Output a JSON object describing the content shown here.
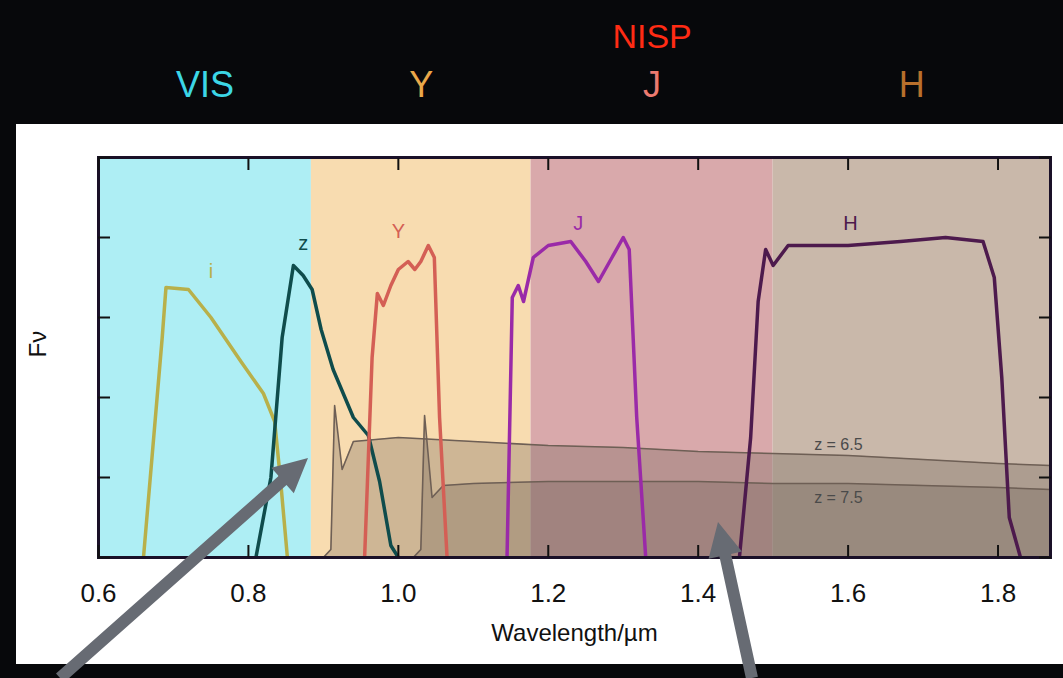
{
  "chart_data": {
    "type": "line",
    "x_label": "Wavelength/µm",
    "y_label": "Fν",
    "xlim": [
      0.6,
      1.87
    ],
    "ylim": [
      0,
      1
    ],
    "xticks": [
      0.6,
      0.8,
      {
        "value": 1,
        "label": "1.0"
      },
      1.2,
      1.4,
      1.6,
      1.8
    ],
    "yticks": [
      0,
      0.2,
      0.4,
      0.6,
      0.8,
      1
    ],
    "tick_labels": "x",
    "grid": false,
    "bands": [
      {
        "name": "VIS",
        "x1": 0.57,
        "x2": 0.884,
        "color": "#aeeef4",
        "label_color": "#3cd6e6"
      },
      {
        "name": "Y",
        "x1": 0.884,
        "x2": 1.177,
        "color": "#f8dcb0",
        "label_color": "#eaa84a"
      },
      {
        "name": "J",
        "x1": 1.177,
        "x2": 1.5,
        "color": "#d9a9ab",
        "label_color": "#ec7a70"
      },
      {
        "name": "H",
        "x1": 1.5,
        "x2": 1.87,
        "color": "#c9b8aa",
        "label_color": "#b8702c"
      }
    ],
    "band_group": {
      "name": "NISP",
      "color": "#ff2b14",
      "bands": [
        "Y",
        "J",
        "H"
      ]
    },
    "series": [
      {
        "name": "z = 6.5",
        "type": "area",
        "color": "#6e5f55",
        "x": [
          0.6,
          0.9,
          0.91,
          0.915,
          0.925,
          0.94,
          1.0,
          1.1,
          1.2,
          1.3,
          1.4,
          1.5,
          1.6,
          1.7,
          1.8,
          1.87
        ],
        "values": [
          0,
          0,
          0.02,
          0.38,
          0.22,
          0.29,
          0.3,
          0.29,
          0.28,
          0.275,
          0.265,
          0.26,
          0.255,
          0.245,
          0.235,
          0.23
        ],
        "label_position": {
          "x": 1.587,
          "y": 0.27
        }
      },
      {
        "name": "z = 7.5",
        "type": "area",
        "color": "#6e5f55",
        "x": [
          0.6,
          1.02,
          1.03,
          1.035,
          1.045,
          1.06,
          1.1,
          1.2,
          1.3,
          1.4,
          1.5,
          1.6,
          1.7,
          1.8,
          1.87
        ],
        "values": [
          0,
          0,
          0.02,
          0.355,
          0.15,
          0.18,
          0.185,
          0.19,
          0.19,
          0.19,
          0.185,
          0.185,
          0.18,
          0.175,
          0.17
        ],
        "label_position": {
          "x": 1.587,
          "y": 0.165
        }
      },
      {
        "name": "i",
        "type": "line",
        "color": "#b8b04a",
        "x": [
          0.66,
          0.685,
          0.69,
          0.72,
          0.75,
          0.79,
          0.82,
          0.835,
          0.843,
          0.852
        ],
        "values": [
          0,
          0.55,
          0.675,
          0.67,
          0.6,
          0.49,
          0.41,
          0.34,
          0.19,
          0
        ],
        "label_position": {
          "x": 0.75,
          "y": 0.7
        }
      },
      {
        "name": "z",
        "type": "line",
        "color": "#0f4c4c",
        "x": [
          0.81,
          0.83,
          0.845,
          0.86,
          0.873,
          0.885,
          0.897,
          0.913,
          0.94,
          0.96,
          0.975,
          0.99,
          1.0
        ],
        "values": [
          0,
          0.2,
          0.55,
          0.73,
          0.705,
          0.67,
          0.57,
          0.47,
          0.35,
          0.305,
          0.19,
          0.03,
          0
        ],
        "label_position": {
          "x": 0.873,
          "y": 0.77
        }
      },
      {
        "name": "Y",
        "type": "line",
        "color": "#d45f55",
        "x": [
          0.955,
          0.965,
          0.972,
          0.98,
          0.99,
          1.0,
          1.013,
          1.022,
          1.03,
          1.04,
          1.048,
          1.055,
          1.065
        ],
        "values": [
          0,
          0.5,
          0.66,
          0.63,
          0.68,
          0.72,
          0.74,
          0.72,
          0.74,
          0.78,
          0.75,
          0.35,
          0
        ],
        "label_position": {
          "x": 1.0,
          "y": 0.8
        }
      },
      {
        "name": "J",
        "type": "line",
        "color": "#9a2aa8",
        "x": [
          1.145,
          1.152,
          1.16,
          1.167,
          1.18,
          1.2,
          1.23,
          1.25,
          1.267,
          1.285,
          1.3,
          1.308,
          1.318,
          1.33
        ],
        "values": [
          0,
          0.65,
          0.68,
          0.64,
          0.75,
          0.78,
          0.79,
          0.74,
          0.69,
          0.75,
          0.8,
          0.77,
          0.35,
          0
        ],
        "label_position": {
          "x": 1.24,
          "y": 0.82
        }
      },
      {
        "name": "H",
        "type": "line",
        "color": "#4d1a4d",
        "x": [
          1.455,
          1.47,
          1.48,
          1.49,
          1.5,
          1.52,
          1.6,
          1.67,
          1.73,
          1.78,
          1.795,
          1.805,
          1.815,
          1.83
        ],
        "values": [
          0,
          0.3,
          0.64,
          0.77,
          0.73,
          0.78,
          0.78,
          0.79,
          0.8,
          0.79,
          0.7,
          0.45,
          0.1,
          0
        ],
        "label_position": {
          "x": 1.603,
          "y": 0.82
        }
      }
    ]
  }
}
